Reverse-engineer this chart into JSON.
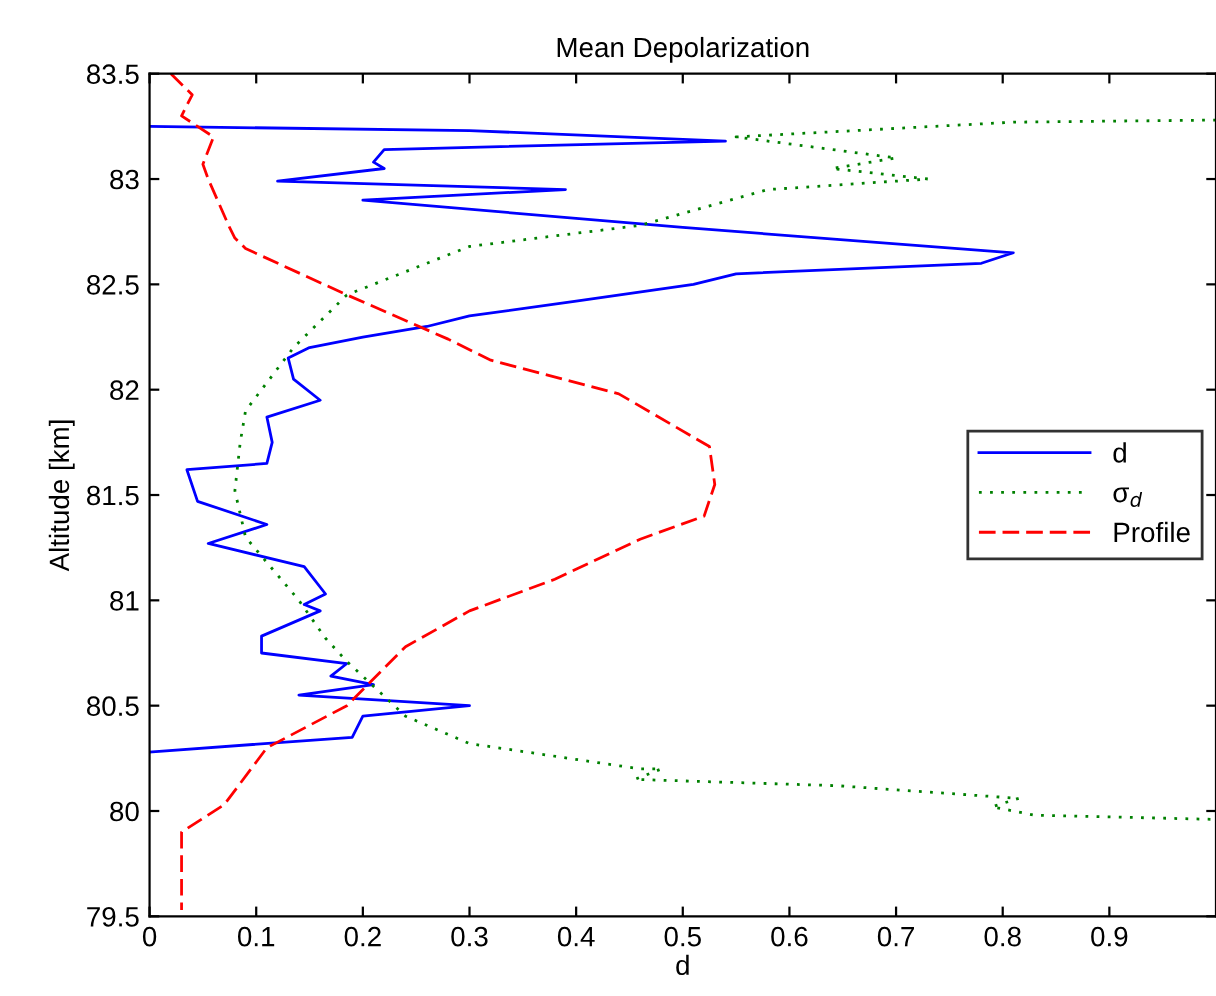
{
  "chart_data": {
    "type": "line",
    "title": "Mean Depolarization",
    "xlabel": "d",
    "ylabel": "Altitude [km]",
    "xlim": [
      0,
      1
    ],
    "xticks": [
      0,
      0.1,
      0.2,
      0.3,
      0.4,
      0.5,
      0.6,
      0.7,
      0.8,
      0.9
    ],
    "ylim": [
      79.5,
      83.5
    ],
    "yticks": [
      79.5,
      80,
      80.5,
      81,
      81.5,
      82,
      82.5,
      83,
      83.5
    ],
    "grid": false,
    "legend": "right",
    "marker": "none",
    "series": [
      {
        "name": "d",
        "color": "#0000ff",
        "line_style": "solid",
        "x": [
          0,
          0.3,
          0.54,
          0.22,
          0.21,
          0.22,
          0.12,
          0.39,
          0.2,
          0.5,
          0.81,
          0.78,
          0.55,
          0.51,
          0.4,
          0.3,
          0.26,
          0.2,
          0.15,
          0.13,
          0.135,
          0.16,
          0.11,
          0.115,
          0.11,
          0.035,
          0.045,
          0.11,
          0.055,
          0.145,
          0.165,
          0.145,
          0.16,
          0.105,
          0.105,
          0.185,
          0.17,
          0.21,
          0.14,
          0.3,
          0.2,
          0.19,
          0
        ],
        "values": [
          83.25,
          83.23,
          83.18,
          83.14,
          83.08,
          83.05,
          82.99,
          82.95,
          82.9,
          82.77,
          82.65,
          82.6,
          82.55,
          82.5,
          82.42,
          82.35,
          82.3,
          82.25,
          82.2,
          82.15,
          82.05,
          81.95,
          81.87,
          81.75,
          81.65,
          81.62,
          81.47,
          81.36,
          81.27,
          81.16,
          81.03,
          80.98,
          80.95,
          80.83,
          80.75,
          80.7,
          80.64,
          80.6,
          80.55,
          80.5,
          80.45,
          80.35,
          80.28
        ]
      },
      {
        "name": "σ$_{d}$",
        "color": "#008000",
        "line_style": "dotted",
        "x": [
          1.0,
          0.81,
          0.55,
          0.7,
          0.64,
          0.73,
          0.58,
          0.46,
          0.3,
          0.185,
          0.135,
          0.09,
          0.085,
          0.08,
          0.09,
          0.115,
          0.14,
          0.165,
          0.185,
          0.24,
          0.3,
          0.46,
          0.48,
          0.455,
          0.645,
          0.815,
          0.79,
          0.83,
          1.0
        ],
        "values": [
          83.28,
          83.27,
          83.2,
          83.1,
          83.05,
          83.0,
          82.95,
          82.78,
          82.68,
          82.45,
          82.2,
          81.9,
          81.75,
          81.52,
          81.3,
          81.15,
          81.0,
          80.82,
          80.71,
          80.45,
          80.32,
          80.2,
          80.2,
          80.15,
          80.12,
          80.06,
          80.02,
          79.98,
          79.96
        ]
      },
      {
        "name": "Profile",
        "color": "#ff0000",
        "line_style": "dashed",
        "x": [
          0.02,
          0.04,
          0.03,
          0.06,
          0.05,
          0.055,
          0.075,
          0.08,
          0.09,
          0.185,
          0.28,
          0.32,
          0.44,
          0.525,
          0.53,
          0.52,
          0.46,
          0.38,
          0.3,
          0.24,
          0.185,
          0.11,
          0.07,
          0.03,
          0.03
        ],
        "values": [
          83.5,
          83.4,
          83.3,
          83.2,
          83.07,
          83.0,
          82.77,
          82.72,
          82.67,
          82.45,
          82.24,
          82.14,
          81.98,
          81.73,
          81.55,
          81.4,
          81.29,
          81.1,
          80.95,
          80.78,
          80.5,
          80.3,
          80.03,
          79.9,
          79.53
        ]
      }
    ]
  }
}
